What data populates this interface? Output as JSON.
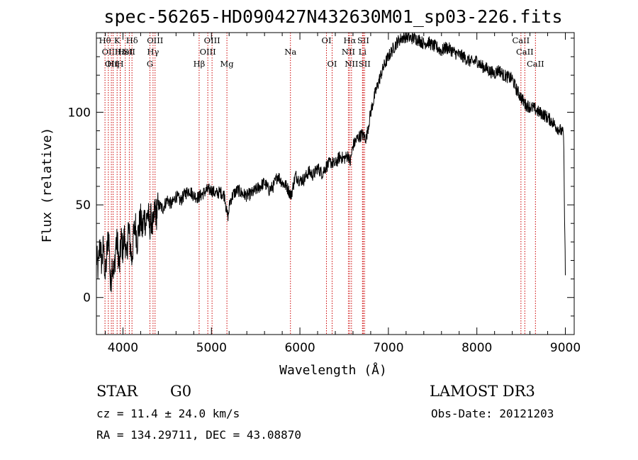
{
  "chart_data": {
    "type": "line",
    "title": "spec-56265-HD090427N432630M01_sp03-226.fits",
    "xlabel": "Wavelength (Å)",
    "ylabel": "Flux (relative)",
    "xlim": [
      3700,
      9100
    ],
    "ylim": [
      -20,
      143
    ],
    "x_ticks": [
      4000,
      5000,
      6000,
      7000,
      8000,
      9000
    ],
    "y_ticks": [
      0,
      50,
      100
    ],
    "x_minor_step": 200,
    "y_minor_step": 10,
    "series": [
      {
        "name": "spectrum",
        "x": [
          3700,
          3720,
          3740,
          3760,
          3780,
          3800,
          3820,
          3840,
          3860,
          3880,
          3900,
          3920,
          3940,
          3960,
          3980,
          4000,
          4020,
          4040,
          4060,
          4080,
          4100,
          4120,
          4140,
          4160,
          4180,
          4200,
          4220,
          4240,
          4260,
          4280,
          4300,
          4320,
          4340,
          4360,
          4380,
          4400,
          4450,
          4500,
          4550,
          4600,
          4650,
          4700,
          4750,
          4800,
          4850,
          4900,
          4950,
          5000,
          5050,
          5100,
          5150,
          5175,
          5190,
          5210,
          5250,
          5300,
          5350,
          5400,
          5450,
          5500,
          5550,
          5600,
          5650,
          5700,
          5750,
          5800,
          5850,
          5900,
          5950,
          6000,
          6050,
          6100,
          6150,
          6200,
          6250,
          6300,
          6350,
          6400,
          6450,
          6500,
          6550,
          6565,
          6600,
          6650,
          6700,
          6750,
          6800,
          6850,
          6900,
          6950,
          7000,
          7050,
          7100,
          7150,
          7200,
          7250,
          7300,
          7350,
          7400,
          7450,
          7500,
          7550,
          7600,
          7650,
          7700,
          7750,
          7800,
          7850,
          7900,
          7950,
          8000,
          8050,
          8100,
          8150,
          8200,
          8250,
          8300,
          8350,
          8400,
          8450,
          8500,
          8550,
          8600,
          8650,
          8700,
          8750,
          8800,
          8850,
          8900,
          8950,
          8980,
          9000
        ],
        "values": [
          22,
          15,
          30,
          18,
          28,
          10,
          25,
          35,
          5,
          20,
          12,
          30,
          28,
          15,
          32,
          25,
          35,
          18,
          38,
          30,
          20,
          33,
          40,
          30,
          38,
          42,
          36,
          44,
          40,
          47,
          38,
          43,
          36,
          48,
          45,
          50,
          48,
          53,
          50,
          55,
          52,
          56,
          58,
          55,
          54,
          56,
          58,
          58,
          56,
          57,
          55,
          45,
          44,
          52,
          56,
          58,
          56,
          55,
          56,
          58,
          60,
          62,
          58,
          60,
          66,
          62,
          60,
          55,
          66,
          63,
          64,
          68,
          66,
          70,
          67,
          71,
          73,
          72,
          76,
          75,
          77,
          72,
          82,
          86,
          88,
          86,
          100,
          110,
          118,
          125,
          130,
          134,
          138,
          140,
          141,
          140,
          140,
          139,
          137,
          138,
          136,
          135,
          133,
          135,
          134,
          132,
          131,
          130,
          128,
          127,
          128,
          125,
          124,
          122,
          121,
          123,
          120,
          119,
          118,
          112,
          108,
          104,
          103,
          102,
          100,
          99,
          97,
          95,
          92,
          90,
          88,
          12
        ]
      }
    ],
    "line_markers": [
      {
        "x": 3797,
        "label": "Hθ",
        "row": 1
      },
      {
        "x": 3835,
        "label": "OII",
        "row": 2
      },
      {
        "x": 3869,
        "label": "OII",
        "row": 3
      },
      {
        "x": 3889,
        "label": "Hη",
        "row": 3
      },
      {
        "x": 3934,
        "label": "K",
        "row": 1
      },
      {
        "x": 3969,
        "label": "H",
        "row": 3
      },
      {
        "x": 3970,
        "label": "Hε",
        "row": 2
      },
      {
        "x": 4026,
        "label": "HeI",
        "row": 2
      },
      {
        "x": 4072,
        "label": "SII",
        "row": 2
      },
      {
        "x": 4102,
        "label": "Hδ",
        "row": 1
      },
      {
        "x": 4305,
        "label": "G",
        "row": 3
      },
      {
        "x": 4340,
        "label": "Hγ",
        "row": 2
      },
      {
        "x": 4363,
        "label": "OIII",
        "row": 1
      },
      {
        "x": 4861,
        "label": "Hβ",
        "row": 3
      },
      {
        "x": 4959,
        "label": "OIII",
        "row": 2
      },
      {
        "x": 5007,
        "label": "OIII",
        "row": 1
      },
      {
        "x": 5175,
        "label": "Mg",
        "row": 3
      },
      {
        "x": 5893,
        "label": "Na",
        "row": 2
      },
      {
        "x": 6300,
        "label": "OI",
        "row": 1
      },
      {
        "x": 6364,
        "label": "OI",
        "row": 3
      },
      {
        "x": 6548,
        "label": "NII",
        "row": 2
      },
      {
        "x": 6563,
        "label": "Hα",
        "row": 1
      },
      {
        "x": 6583,
        "label": "NII",
        "row": 3
      },
      {
        "x": 6707,
        "label": "Li",
        "row": 2
      },
      {
        "x": 6716,
        "label": "SII",
        "row": 1
      },
      {
        "x": 6731,
        "label": "SII",
        "row": 3
      },
      {
        "x": 8498,
        "label": "CaII",
        "row": 1
      },
      {
        "x": 8542,
        "label": "CaII",
        "row": 2
      },
      {
        "x": 8662,
        "label": "CaII",
        "row": 3
      }
    ],
    "marker_color": "#cc0000"
  },
  "info": {
    "class": "STAR",
    "subclass": "G0",
    "survey": "LAMOST DR3",
    "cz": "cz = 11.4 ± 24.0 km/s",
    "obs_date": "Obs-Date: 20121203",
    "radec": "RA = 134.29711, DEC =  43.08870"
  }
}
